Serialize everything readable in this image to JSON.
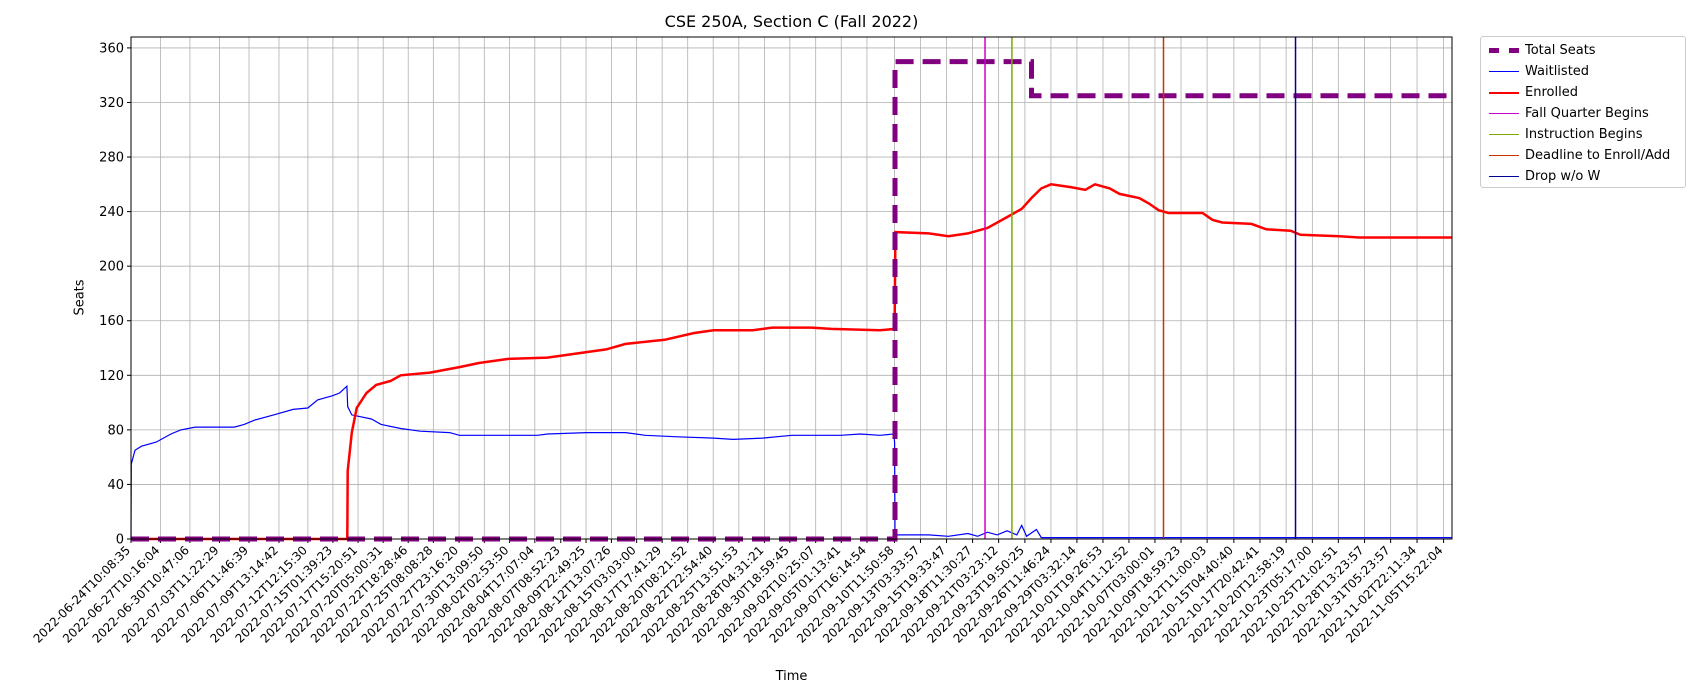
{
  "chart_data": {
    "type": "line",
    "title": "CSE 250A, Section C (Fall 2022)",
    "xlabel": "Time",
    "ylabel": "Seats",
    "ylim": [
      0,
      368
    ],
    "yticks": [
      0,
      40,
      80,
      120,
      160,
      200,
      240,
      280,
      320,
      360
    ],
    "grid": true,
    "legend_position": "outside-top-right",
    "xlim": [
      "2022-06-24T10:08:35",
      "2022-11-06T12:00:00"
    ],
    "xtick_labels": [
      "2022-06-24T10:08:35",
      "2022-06-27T10:16:04",
      "2022-06-30T10:47:06",
      "2022-07-03T11:22:29",
      "2022-07-06T11:46:39",
      "2022-07-09T13:14:42",
      "2022-07-12T12:15:30",
      "2022-07-15T01:39:23",
      "2022-07-17T15:20:51",
      "2022-07-20T05:00:31",
      "2022-07-22T18:28:46",
      "2022-07-25T08:08:28",
      "2022-07-27T23:16:20",
      "2022-07-30T13:09:50",
      "2022-08-02T02:53:50",
      "2022-08-04T17:07:04",
      "2022-08-07T08:52:23",
      "2022-08-09T22:49:25",
      "2022-08-12T13:07:26",
      "2022-08-15T03:03:00",
      "2022-08-17T17:41:29",
      "2022-08-20T08:21:52",
      "2022-08-22T22:54:40",
      "2022-08-25T13:51:53",
      "2022-08-28T04:31:21",
      "2022-08-30T18:59:45",
      "2022-09-02T10:25:07",
      "2022-09-05T01:13:41",
      "2022-09-07T16:14:54",
      "2022-09-10T11:50:58",
      "2022-09-13T03:33:57",
      "2022-09-15T19:33:47",
      "2022-09-18T11:30:27",
      "2022-09-21T03:23:12",
      "2022-09-23T19:50:25",
      "2022-09-26T11:46:24",
      "2022-09-29T03:32:14",
      "2022-10-01T19:26:53",
      "2022-10-04T11:12:52",
      "2022-10-07T03:00:01",
      "2022-10-09T18:59:23",
      "2022-10-12T11:00:03",
      "2022-10-15T04:40:40",
      "2022-10-17T20:42:41",
      "2022-10-20T12:58:19",
      "2022-10-23T05:17:00",
      "2022-10-25T21:02:51",
      "2022-10-28T13:23:57",
      "2022-10-31T05:23:57",
      "2022-11-02T22:11:34",
      "2022-11-05T15:22:04"
    ],
    "series": [
      {
        "name": "Total Seats",
        "style": "dashed",
        "color": "#800080",
        "points": [
          [
            "2022-06-24T10:08:35",
            0
          ],
          [
            "2022-09-10T13:00:00",
            0
          ],
          [
            "2022-09-10T13:00:00",
            350
          ],
          [
            "2022-09-24T12:00:00",
            350
          ],
          [
            "2022-09-24T12:00:00",
            325
          ],
          [
            "2022-11-06T12:00:00",
            325
          ]
        ]
      },
      {
        "name": "Waitlisted",
        "style": "solid",
        "color": "#0000ff",
        "points": [
          [
            "2022-06-24T10:08:35",
            0
          ],
          [
            "2022-06-24T11:00:00",
            55
          ],
          [
            "2022-06-24T20:00:00",
            65
          ],
          [
            "2022-06-25T12:00:00",
            68
          ],
          [
            "2022-06-27T00:00:00",
            71
          ],
          [
            "2022-06-28T12:00:00",
            77
          ],
          [
            "2022-06-29T12:00:00",
            80
          ],
          [
            "2022-07-01T00:00:00",
            82
          ],
          [
            "2022-07-05T00:00:00",
            82
          ],
          [
            "2022-07-06T00:00:00",
            84
          ],
          [
            "2022-07-07T00:00:00",
            87
          ],
          [
            "2022-07-09T00:00:00",
            91
          ],
          [
            "2022-07-11T00:00:00",
            95
          ],
          [
            "2022-07-12T12:00:00",
            96
          ],
          [
            "2022-07-13T12:00:00",
            102
          ],
          [
            "2022-07-15T00:00:00",
            105
          ],
          [
            "2022-07-15T18:00:00",
            107
          ],
          [
            "2022-07-16T12:00:00",
            112
          ],
          [
            "2022-07-16T14:00:00",
            97
          ],
          [
            "2022-07-17T00:00:00",
            91
          ],
          [
            "2022-07-19T00:00:00",
            88
          ],
          [
            "2022-07-20T00:00:00",
            84
          ],
          [
            "2022-07-22T00:00:00",
            81
          ],
          [
            "2022-07-24T00:00:00",
            79
          ],
          [
            "2022-07-27T00:00:00",
            78
          ],
          [
            "2022-07-28T00:00:00",
            76
          ],
          [
            "2022-08-05T00:00:00",
            76
          ],
          [
            "2022-08-06T00:00:00",
            77
          ],
          [
            "2022-08-10T00:00:00",
            78
          ],
          [
            "2022-08-14T00:00:00",
            78
          ],
          [
            "2022-08-16T00:00:00",
            76
          ],
          [
            "2022-08-19T00:00:00",
            75
          ],
          [
            "2022-08-23T00:00:00",
            74
          ],
          [
            "2022-08-25T00:00:00",
            73
          ],
          [
            "2022-08-28T00:00:00",
            74
          ],
          [
            "2022-08-31T00:00:00",
            76
          ],
          [
            "2022-09-05T00:00:00",
            76
          ],
          [
            "2022-09-07T00:00:00",
            77
          ],
          [
            "2022-09-09T00:00:00",
            76
          ],
          [
            "2022-09-10T10:00:00",
            77
          ],
          [
            "2022-09-10T12:00:00",
            71
          ],
          [
            "2022-09-10T13:00:00",
            3
          ],
          [
            "2022-09-14T00:00:00",
            3
          ],
          [
            "2022-09-16T00:00:00",
            2
          ],
          [
            "2022-09-18T00:00:00",
            4
          ],
          [
            "2022-09-19T00:00:00",
            2
          ],
          [
            "2022-09-20T00:00:00",
            5
          ],
          [
            "2022-09-21T00:00:00",
            3
          ],
          [
            "2022-09-22T00:00:00",
            6
          ],
          [
            "2022-09-23T00:00:00",
            3
          ],
          [
            "2022-09-23T12:00:00",
            10
          ],
          [
            "2022-09-24T00:00:00",
            2
          ],
          [
            "2022-09-25T00:00:00",
            7
          ],
          [
            "2022-09-25T12:00:00",
            1
          ],
          [
            "2022-11-06T12:00:00",
            1
          ]
        ]
      },
      {
        "name": "Enrolled",
        "style": "solid",
        "color": "#ff0000",
        "points": [
          [
            "2022-06-24T10:08:35",
            0
          ],
          [
            "2022-07-16T13:00:00",
            0
          ],
          [
            "2022-07-16T14:00:00",
            50
          ],
          [
            "2022-07-17T00:00:00",
            78
          ],
          [
            "2022-07-17T12:00:00",
            96
          ],
          [
            "2022-07-18T12:00:00",
            107
          ],
          [
            "2022-07-19T12:00:00",
            113
          ],
          [
            "2022-07-21T00:00:00",
            116
          ],
          [
            "2022-07-22T00:00:00",
            120
          ],
          [
            "2022-07-25T00:00:00",
            122
          ],
          [
            "2022-07-28T00:00:00",
            126
          ],
          [
            "2022-07-30T00:00:00",
            129
          ],
          [
            "2022-08-02T00:00:00",
            132
          ],
          [
            "2022-08-06T00:00:00",
            133
          ],
          [
            "2022-08-09T00:00:00",
            136
          ],
          [
            "2022-08-12T00:00:00",
            139
          ],
          [
            "2022-08-14T00:00:00",
            143
          ],
          [
            "2022-08-18T00:00:00",
            146
          ],
          [
            "2022-08-21T00:00:00",
            151
          ],
          [
            "2022-08-23T00:00:00",
            153
          ],
          [
            "2022-08-27T00:00:00",
            153
          ],
          [
            "2022-08-29T00:00:00",
            155
          ],
          [
            "2022-09-02T00:00:00",
            155
          ],
          [
            "2022-09-04T00:00:00",
            154
          ],
          [
            "2022-09-09T00:00:00",
            153
          ],
          [
            "2022-09-10T12:00:00",
            154
          ],
          [
            "2022-09-10T14:00:00",
            225
          ],
          [
            "2022-09-14T00:00:00",
            224
          ],
          [
            "2022-09-16T00:00:00",
            222
          ],
          [
            "2022-09-18T00:00:00",
            224
          ],
          [
            "2022-09-20T00:00:00",
            228
          ],
          [
            "2022-09-22T00:00:00",
            236
          ],
          [
            "2022-09-23T12:00:00",
            242
          ],
          [
            "2022-09-24T12:00:00",
            250
          ],
          [
            "2022-09-25T12:00:00",
            257
          ],
          [
            "2022-09-26T12:00:00",
            260
          ],
          [
            "2022-09-28T12:00:00",
            258
          ],
          [
            "2022-09-30T00:00:00",
            256
          ],
          [
            "2022-10-01T00:00:00",
            260
          ],
          [
            "2022-10-02T12:00:00",
            257
          ],
          [
            "2022-10-03T12:00:00",
            253
          ],
          [
            "2022-10-05T12:00:00",
            250
          ],
          [
            "2022-10-06T12:00:00",
            246
          ],
          [
            "2022-10-07T12:00:00",
            241
          ],
          [
            "2022-10-08T12:00:00",
            239
          ],
          [
            "2022-10-12T00:00:00",
            239
          ],
          [
            "2022-10-13T00:00:00",
            234
          ],
          [
            "2022-10-14T00:00:00",
            232
          ],
          [
            "2022-10-17T00:00:00",
            231
          ],
          [
            "2022-10-18T12:00:00",
            227
          ],
          [
            "2022-10-21T00:00:00",
            226
          ],
          [
            "2022-10-22T00:00:00",
            223
          ],
          [
            "2022-10-26T00:00:00",
            222
          ],
          [
            "2022-10-28T00:00:00",
            221
          ],
          [
            "2022-11-06T12:00:00",
            221
          ]
        ]
      }
    ],
    "vertical_lines": [
      {
        "name": "Fall Quarter Begins",
        "color": "#cc00cc",
        "x": "2022-09-19T18:00:00"
      },
      {
        "name": "Instruction Begins",
        "color": "#7aab00",
        "x": "2022-09-22T12:00:00"
      },
      {
        "name": "Deadline to Enroll/Add",
        "color": "#cc3300",
        "x": "2022-10-08T00:00:00"
      },
      {
        "name": "Drop w/o W",
        "color": "#000099",
        "x": "2022-10-21T12:00:00"
      }
    ]
  }
}
